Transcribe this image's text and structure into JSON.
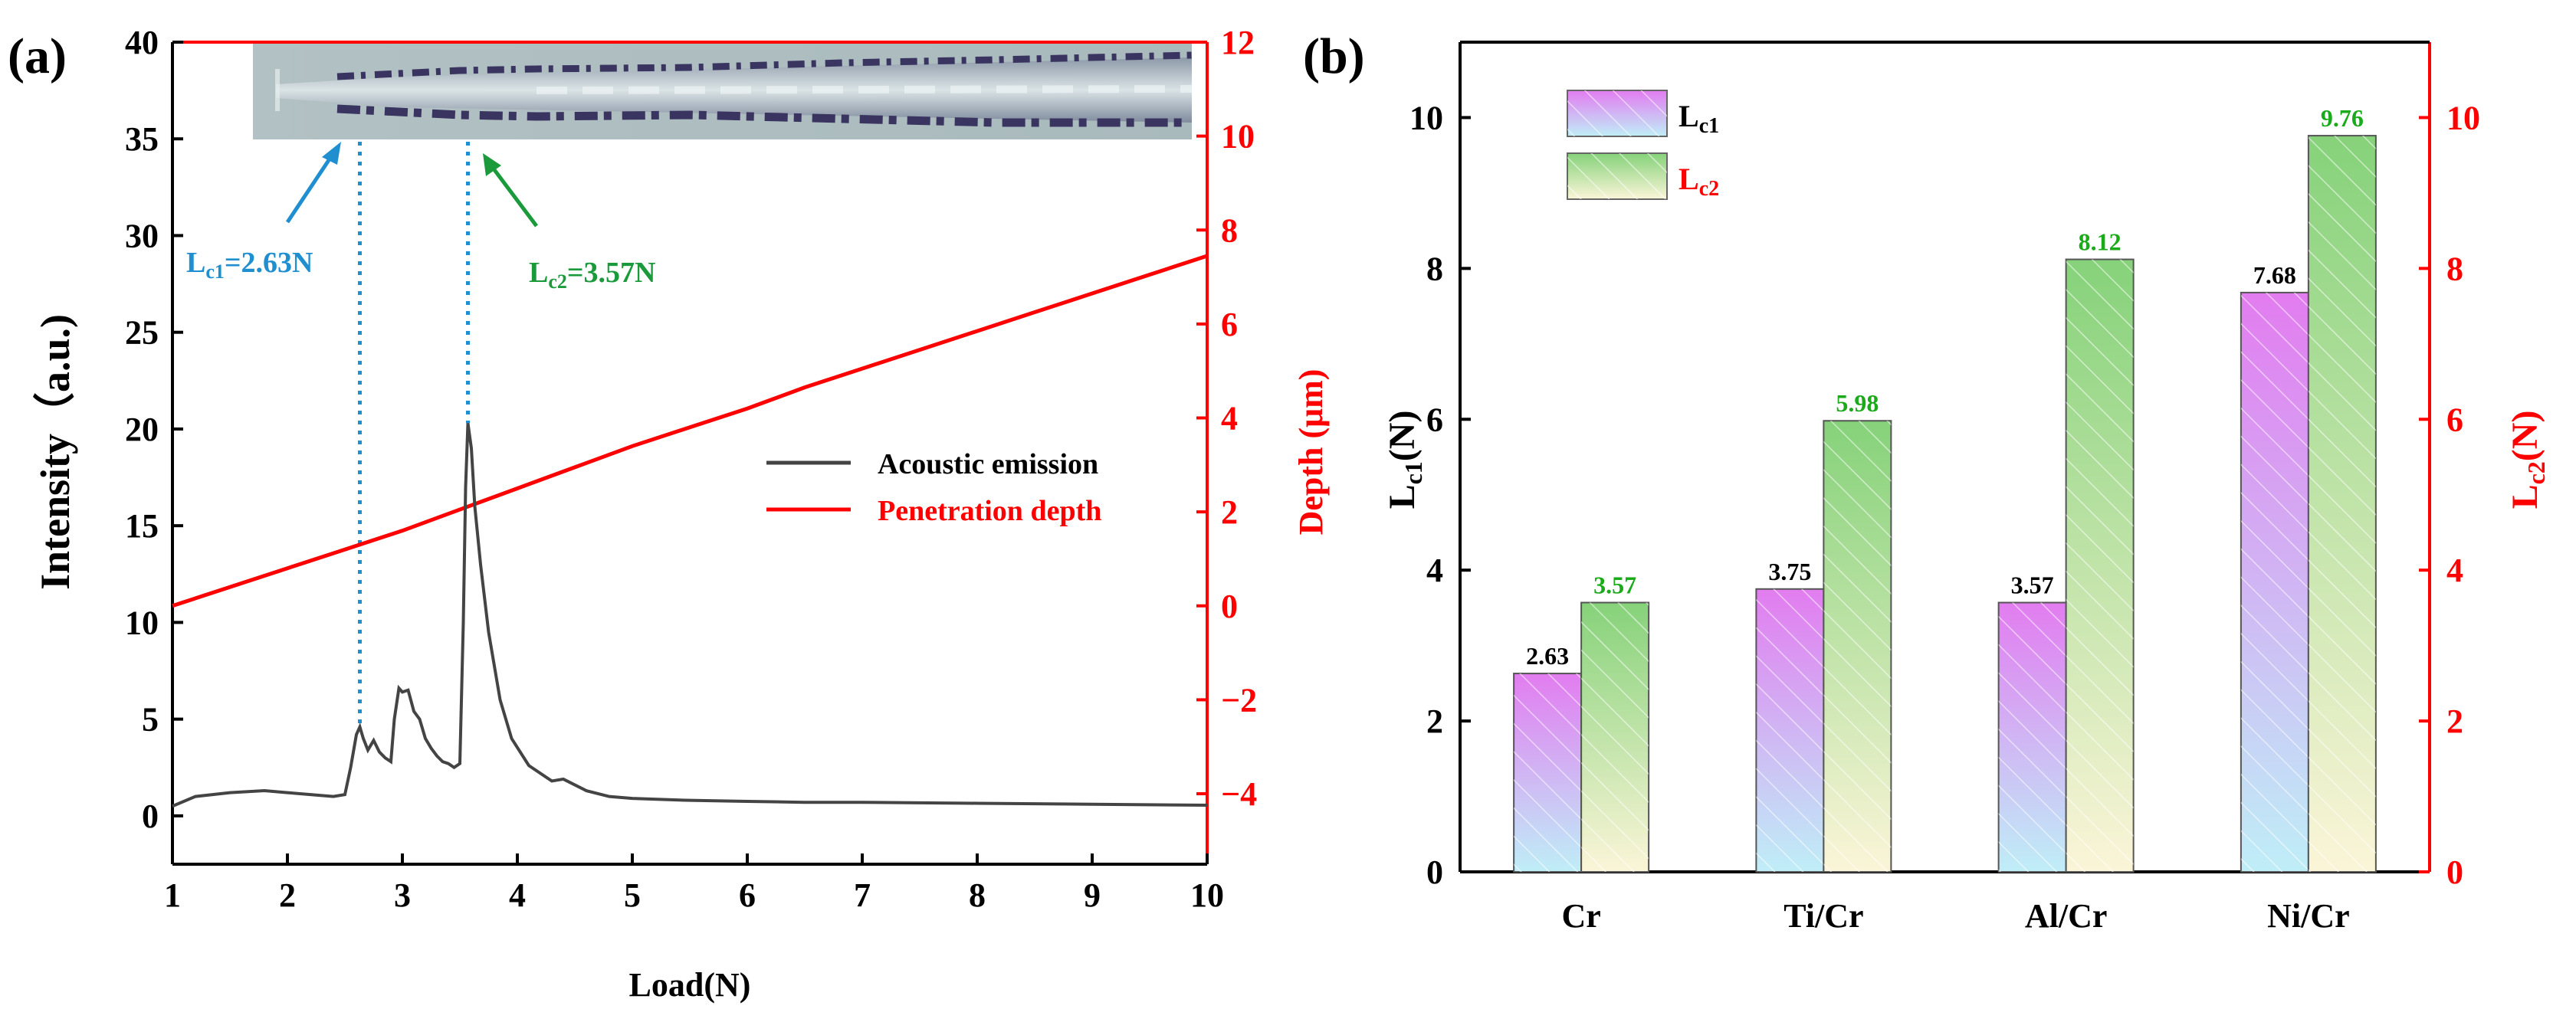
{
  "chart_data": [
    {
      "panel_label": "(a)",
      "type": "line",
      "xlabel": "Load(N)",
      "ylabel": "Intensity（a.u.)",
      "y2label": "Depth (μm)",
      "xlim": [
        1,
        10
      ],
      "ylim": [
        -2.5,
        40
      ],
      "y2lim": [
        -5.5,
        12
      ],
      "xticks": [
        "1",
        "2",
        "3",
        "4",
        "5",
        "6",
        "7",
        "8",
        "9",
        "10"
      ],
      "yticks": [
        "0",
        "5",
        "10",
        "15",
        "20",
        "25",
        "30",
        "35",
        "40"
      ],
      "y2ticks": [
        "−4",
        "−2",
        "0",
        "2",
        "4",
        "6",
        "8",
        "10",
        "12"
      ],
      "series": [
        {
          "name": "Acoustic emission",
          "color": "#444444",
          "axis": "left",
          "x": [
            1.0,
            1.2,
            1.5,
            1.8,
            2.0,
            2.2,
            2.4,
            2.5,
            2.55,
            2.6,
            2.63,
            2.66,
            2.7,
            2.75,
            2.8,
            2.85,
            2.9,
            2.93,
            2.97,
            3.0,
            3.05,
            3.1,
            3.15,
            3.2,
            3.25,
            3.3,
            3.35,
            3.4,
            3.45,
            3.5,
            3.53,
            3.55,
            3.57,
            3.6,
            3.63,
            3.68,
            3.75,
            3.85,
            3.95,
            4.1,
            4.3,
            4.4,
            4.6,
            4.8,
            5.0,
            5.5,
            6.0,
            6.5,
            7.0,
            8.0,
            9.0,
            10.0
          ],
          "y": [
            0.5,
            1.0,
            1.2,
            1.3,
            1.2,
            1.1,
            1.0,
            1.1,
            2.5,
            4.2,
            4.6,
            4.0,
            3.4,
            3.9,
            3.3,
            3.0,
            2.8,
            5.0,
            6.6,
            6.4,
            6.5,
            5.4,
            5.0,
            4.0,
            3.5,
            3.1,
            2.8,
            2.7,
            2.5,
            2.7,
            10.0,
            17.0,
            20.3,
            19.0,
            16.0,
            13.0,
            9.5,
            6.0,
            4.0,
            2.6,
            1.8,
            1.9,
            1.3,
            1.0,
            0.9,
            0.8,
            0.75,
            0.7,
            0.7,
            0.65,
            0.6,
            0.55
          ]
        },
        {
          "name": "Penetration depth",
          "color": "#ff0000",
          "axis": "right",
          "x": [
            1.0,
            1.5,
            2.0,
            2.5,
            3.0,
            3.5,
            4.0,
            4.5,
            5.0,
            5.5,
            6.0,
            6.5,
            7.0,
            7.5,
            8.0,
            8.5,
            9.0,
            9.5,
            10.0
          ],
          "y": [
            0.0,
            0.4,
            0.8,
            1.2,
            1.6,
            2.05,
            2.5,
            2.95,
            3.4,
            3.8,
            4.2,
            4.65,
            5.05,
            5.45,
            5.85,
            6.25,
            6.65,
            7.05,
            7.45
          ]
        }
      ],
      "markers": [
        {
          "x": 2.63,
          "label_main": "L",
          "label_sub": "c1",
          "label_value": "=2.63N",
          "color": "#1f8fd0"
        },
        {
          "x": 3.57,
          "label_main": "L",
          "label_sub": "c2",
          "label_value": "=3.57N",
          "color": "#1a9a3a"
        }
      ],
      "inset": "scratch track micrograph",
      "legend_position": "center-right"
    },
    {
      "panel_label": "(b)",
      "type": "bar",
      "xlabel": "",
      "ylabel_main": "L",
      "ylabel_sub": "c1",
      "ylabel_unit": "(N)",
      "y2label_main": "L",
      "y2label_sub": "c2",
      "y2label_unit": "(N)",
      "ylim": [
        0,
        11
      ],
      "yticks": [
        "0",
        "2",
        "4",
        "6",
        "8",
        "10"
      ],
      "y2ticks": [
        "0",
        "2",
        "4",
        "6",
        "8",
        "10"
      ],
      "categories": [
        "Cr",
        "Ti/Cr",
        "Al/Cr",
        "Ni/Cr"
      ],
      "series": [
        {
          "name_main": "L",
          "name_sub": "c1",
          "values": [
            2.63,
            3.75,
            3.57,
            7.68
          ],
          "labels": [
            "2.63",
            "3.75",
            "3.57",
            "7.68"
          ],
          "label_color": "#000000"
        },
        {
          "name_main": "L",
          "name_sub": "c2",
          "values": [
            3.57,
            5.98,
            8.12,
            9.76
          ],
          "labels": [
            "3.57",
            "5.98",
            "8.12",
            "9.76"
          ],
          "label_color": "#1aaa1a"
        }
      ],
      "legend_position": "top-left"
    }
  ]
}
